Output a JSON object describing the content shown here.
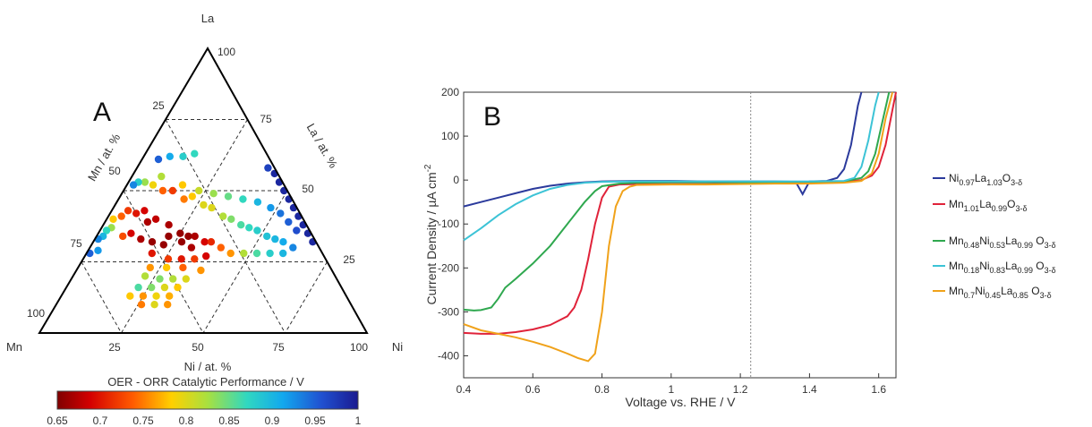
{
  "panels": {
    "a": "A",
    "b": "B"
  },
  "ternary": {
    "vertex_top": "La",
    "vertex_left": "Mn",
    "vertex_right": "Ni",
    "axis_left": "Mn / at. %",
    "axis_right": "La / at. %",
    "axis_bottom": "Ni / at. %",
    "top_label": "100",
    "left_ticks": [
      "25",
      "50",
      "75",
      "100"
    ],
    "right_ticks": [
      "75",
      "50",
      "25"
    ],
    "bottom_ticks": [
      "25",
      "50",
      "75",
      "100"
    ],
    "colorbar_title": "OER - ORR Catalytic Performance / V",
    "colorbar_ticks": [
      "0.65",
      "0.7",
      "0.75",
      "0.8",
      "0.85",
      "0.9",
      "0.95",
      "1"
    ],
    "colorbar_range": [
      0.65,
      1.0
    ]
  },
  "colors": {
    "ni_la": "#2b3a9c",
    "mn_la": "#e0233a",
    "mn_ni_la_048": "#2fa84f",
    "mn_ni_la_018": "#3cc3d6",
    "mn_ni_la_07": "#f0a21a"
  },
  "chart_data": [
    {
      "type": "scatter",
      "kind": "ternary",
      "axes": [
        "Mn / at. %",
        "Ni / at. %",
        "La / at. %"
      ],
      "color_metric": "OER - ORR Catalytic Performance / V",
      "points": [
        {
          "Mn": 45,
          "Ni": 15,
          "La": 40,
          "v": 0.68
        },
        {
          "Mn": 42,
          "Ni": 20,
          "La": 38,
          "v": 0.67
        },
        {
          "Mn": 40,
          "Ni": 25,
          "La": 35,
          "v": 0.66
        },
        {
          "Mn": 38,
          "Ni": 28,
          "La": 34,
          "v": 0.66
        },
        {
          "Mn": 36,
          "Ni": 30,
          "La": 34,
          "v": 0.67
        },
        {
          "Mn": 44,
          "Ni": 22,
          "La": 34,
          "v": 0.66
        },
        {
          "Mn": 41,
          "Ni": 27,
          "La": 32,
          "v": 0.66
        },
        {
          "Mn": 39,
          "Ni": 31,
          "La": 30,
          "v": 0.67
        },
        {
          "Mn": 34,
          "Ni": 34,
          "La": 32,
          "v": 0.69
        },
        {
          "Mn": 32,
          "Ni": 36,
          "La": 32,
          "v": 0.71
        },
        {
          "Mn": 36,
          "Ni": 37,
          "La": 27,
          "v": 0.69
        },
        {
          "Mn": 30,
          "Ni": 40,
          "La": 30,
          "v": 0.74
        },
        {
          "Mn": 50,
          "Ni": 8,
          "La": 42,
          "v": 0.7
        },
        {
          "Mn": 52,
          "Ni": 5,
          "La": 43,
          "v": 0.72
        },
        {
          "Mn": 55,
          "Ni": 4,
          "La": 41,
          "v": 0.74
        },
        {
          "Mn": 58,
          "Ni": 2,
          "La": 40,
          "v": 0.78
        },
        {
          "Mn": 60,
          "Ni": 3,
          "La": 37,
          "v": 0.83
        },
        {
          "Mn": 62,
          "Ni": 2,
          "La": 36,
          "v": 0.87
        },
        {
          "Mn": 64,
          "Ni": 2,
          "La": 34,
          "v": 0.9
        },
        {
          "Mn": 66,
          "Ni": 1,
          "La": 33,
          "v": 0.93
        },
        {
          "Mn": 47,
          "Ni": 10,
          "La": 43,
          "v": 0.69
        },
        {
          "Mn": 48,
          "Ni": 13,
          "La": 39,
          "v": 0.67
        },
        {
          "Mn": 35,
          "Ni": 15,
          "La": 50,
          "v": 0.72
        },
        {
          "Mn": 33,
          "Ni": 20,
          "La": 47,
          "v": 0.75
        },
        {
          "Mn": 30,
          "Ni": 22,
          "La": 48,
          "v": 0.78
        },
        {
          "Mn": 28,
          "Ni": 27,
          "La": 45,
          "v": 0.8
        },
        {
          "Mn": 26,
          "Ni": 30,
          "La": 44,
          "v": 0.8
        },
        {
          "Mn": 24,
          "Ni": 35,
          "La": 41,
          "v": 0.82
        },
        {
          "Mn": 22,
          "Ni": 38,
          "La": 40,
          "v": 0.84
        },
        {
          "Mn": 20,
          "Ni": 42,
          "La": 38,
          "v": 0.86
        },
        {
          "Mn": 18,
          "Ni": 45,
          "La": 37,
          "v": 0.87
        },
        {
          "Mn": 16,
          "Ni": 48,
          "La": 36,
          "v": 0.88
        },
        {
          "Mn": 14,
          "Ni": 52,
          "La": 34,
          "v": 0.89
        },
        {
          "Mn": 12,
          "Ni": 55,
          "La": 33,
          "v": 0.9
        },
        {
          "Mn": 10,
          "Ni": 58,
          "La": 32,
          "v": 0.91
        },
        {
          "Mn": 38,
          "Ni": 12,
          "La": 50,
          "v": 0.74
        },
        {
          "Mn": 40,
          "Ni": 8,
          "La": 52,
          "v": 0.79
        },
        {
          "Mn": 42,
          "Ni": 5,
          "La": 53,
          "v": 0.83
        },
        {
          "Mn": 44,
          "Ni": 3,
          "La": 53,
          "v": 0.88
        },
        {
          "Mn": 46,
          "Ni": 2,
          "La": 52,
          "v": 0.93
        },
        {
          "Mn": 31,
          "Ni": 17,
          "La": 52,
          "v": 0.78
        },
        {
          "Mn": 27,
          "Ni": 23,
          "La": 50,
          "v": 0.81
        },
        {
          "Mn": 23,
          "Ni": 28,
          "La": 49,
          "v": 0.83
        },
        {
          "Mn": 19,
          "Ni": 33,
          "La": 48,
          "v": 0.85
        },
        {
          "Mn": 15,
          "Ni": 38,
          "La": 47,
          "v": 0.87
        },
        {
          "Mn": 11,
          "Ni": 43,
          "La": 46,
          "v": 0.9
        },
        {
          "Mn": 8,
          "Ni": 48,
          "La": 44,
          "v": 0.92
        },
        {
          "Mn": 6,
          "Ni": 52,
          "La": 42,
          "v": 0.94
        },
        {
          "Mn": 5,
          "Ni": 56,
          "La": 39,
          "v": 0.95
        },
        {
          "Mn": 4,
          "Ni": 60,
          "La": 36,
          "v": 0.96
        },
        {
          "Mn": 8,
          "Ni": 62,
          "La": 30,
          "v": 0.93
        },
        {
          "Mn": 12,
          "Ni": 60,
          "La": 28,
          "v": 0.9
        },
        {
          "Mn": 16,
          "Ni": 56,
          "La": 28,
          "v": 0.88
        },
        {
          "Mn": 20,
          "Ni": 52,
          "La": 28,
          "v": 0.86
        },
        {
          "Mn": 24,
          "Ni": 48,
          "La": 28,
          "v": 0.82
        },
        {
          "Mn": 28,
          "Ni": 44,
          "La": 28,
          "v": 0.76
        },
        {
          "Mn": 1,
          "Ni": 49,
          "La": 50,
          "v": 0.99
        },
        {
          "Mn": 1,
          "Ni": 52,
          "La": 47,
          "v": 0.99
        },
        {
          "Mn": 1,
          "Ni": 55,
          "La": 44,
          "v": 0.99
        },
        {
          "Mn": 1,
          "Ni": 58,
          "La": 41,
          "v": 0.99
        },
        {
          "Mn": 1,
          "Ni": 61,
          "La": 38,
          "v": 0.99
        },
        {
          "Mn": 1,
          "Ni": 64,
          "La": 35,
          "v": 0.99
        },
        {
          "Mn": 1,
          "Ni": 67,
          "La": 32,
          "v": 0.99
        },
        {
          "Mn": 1,
          "Ni": 46,
          "La": 53,
          "v": 0.99
        },
        {
          "Mn": 1,
          "Ni": 43,
          "La": 56,
          "v": 0.99
        },
        {
          "Mn": 2,
          "Ni": 40,
          "La": 58,
          "v": 0.97
        },
        {
          "Mn": 71,
          "Ni": 1,
          "La": 28,
          "v": 0.95
        },
        {
          "Mn": 68,
          "Ni": 3,
          "La": 29,
          "v": 0.92
        },
        {
          "Mn": 58,
          "Ni": 8,
          "La": 34,
          "v": 0.73
        },
        {
          "Mn": 55,
          "Ni": 10,
          "La": 35,
          "v": 0.69
        },
        {
          "Mn": 53,
          "Ni": 14,
          "La": 33,
          "v": 0.67
        },
        {
          "Mn": 50,
          "Ni": 18,
          "La": 32,
          "v": 0.66
        },
        {
          "Mn": 47,
          "Ni": 22,
          "La": 31,
          "v": 0.66
        },
        {
          "Mn": 34,
          "Ni": 5,
          "La": 61,
          "v": 0.95
        },
        {
          "Mn": 30,
          "Ni": 8,
          "La": 62,
          "v": 0.91
        },
        {
          "Mn": 26,
          "Ni": 12,
          "La": 62,
          "v": 0.88
        },
        {
          "Mn": 22,
          "Ni": 15,
          "La": 63,
          "v": 0.87
        },
        {
          "Mn": 36,
          "Ni": 9,
          "La": 55,
          "v": 0.82
        },
        {
          "Mn": 52,
          "Ni": 20,
          "La": 28,
          "v": 0.7
        },
        {
          "Mn": 48,
          "Ni": 26,
          "La": 26,
          "v": 0.72
        },
        {
          "Mn": 44,
          "Ni": 30,
          "La": 26,
          "v": 0.7
        },
        {
          "Mn": 40,
          "Ni": 34,
          "La": 26,
          "v": 0.72
        },
        {
          "Mn": 55,
          "Ni": 22,
          "La": 23,
          "v": 0.76
        },
        {
          "Mn": 50,
          "Ni": 27,
          "La": 23,
          "v": 0.78
        },
        {
          "Mn": 45,
          "Ni": 32,
          "La": 23,
          "v": 0.74
        },
        {
          "Mn": 40,
          "Ni": 38,
          "La": 22,
          "v": 0.76
        },
        {
          "Mn": 58,
          "Ni": 22,
          "La": 20,
          "v": 0.82
        },
        {
          "Mn": 54,
          "Ni": 27,
          "La": 19,
          "v": 0.84
        },
        {
          "Mn": 50,
          "Ni": 31,
          "La": 19,
          "v": 0.82
        },
        {
          "Mn": 46,
          "Ni": 35,
          "La": 19,
          "v": 0.8
        },
        {
          "Mn": 62,
          "Ni": 22,
          "La": 16,
          "v": 0.86
        },
        {
          "Mn": 58,
          "Ni": 26,
          "La": 16,
          "v": 0.84
        },
        {
          "Mn": 54,
          "Ni": 30,
          "La": 16,
          "v": 0.8
        },
        {
          "Mn": 50,
          "Ni": 34,
          "La": 16,
          "v": 0.78
        },
        {
          "Mn": 66,
          "Ni": 21,
          "La": 13,
          "v": 0.78
        },
        {
          "Mn": 62,
          "Ni": 25,
          "La": 13,
          "v": 0.76
        },
        {
          "Mn": 58,
          "Ni": 29,
          "La": 13,
          "v": 0.79
        },
        {
          "Mn": 54,
          "Ni": 33,
          "La": 13,
          "v": 0.77
        },
        {
          "Mn": 64,
          "Ni": 26,
          "La": 10,
          "v": 0.75
        },
        {
          "Mn": 60,
          "Ni": 30,
          "La": 10,
          "v": 0.8
        },
        {
          "Mn": 56,
          "Ni": 34,
          "La": 10,
          "v": 0.76
        }
      ]
    },
    {
      "type": "line",
      "title": "",
      "xlabel": "Voltage vs. RHE / V",
      "ylabel": "Current Density / µA cm⁻²",
      "ylabel_main": "Current Density / µA cm",
      "ylabel_exp": "-2",
      "xlim": [
        0.4,
        1.65
      ],
      "ylim": [
        -450,
        200
      ],
      "x_ticks": [
        "0.4",
        "0.6",
        "0.8",
        "1",
        "1.2",
        "1.4",
        "1.6"
      ],
      "y_ticks": [
        "200",
        "100",
        "0",
        "-100",
        "-200",
        "-300",
        "-400"
      ],
      "vline_x": 1.23,
      "grid": false,
      "legend": "right",
      "series": [
        {
          "color_key": "ni_la",
          "x": [
            0.4,
            0.45,
            0.5,
            0.55,
            0.6,
            0.65,
            0.7,
            0.75,
            0.8,
            0.9,
            1.0,
            1.1,
            1.2,
            1.3,
            1.36,
            1.38,
            1.4,
            1.45,
            1.48,
            1.5,
            1.52,
            1.54,
            1.55
          ],
          "y": [
            -60,
            -50,
            -40,
            -30,
            -20,
            -13,
            -8,
            -5,
            -3,
            -2,
            -2,
            -3,
            -3,
            -3,
            -4,
            -32,
            -3,
            -2,
            5,
            25,
            80,
            170,
            200
          ]
        },
        {
          "color_key": "mn_la",
          "x": [
            0.4,
            0.45,
            0.5,
            0.55,
            0.6,
            0.65,
            0.7,
            0.72,
            0.74,
            0.76,
            0.78,
            0.8,
            0.82,
            0.85,
            0.9,
            1.0,
            1.1,
            1.2,
            1.3,
            1.4,
            1.5,
            1.55,
            1.58,
            1.6,
            1.62,
            1.64,
            1.65
          ],
          "y": [
            -348,
            -350,
            -350,
            -346,
            -340,
            -330,
            -310,
            -290,
            -250,
            -180,
            -100,
            -40,
            -15,
            -10,
            -9,
            -9,
            -9,
            -8,
            -7,
            -6,
            -4,
            0,
            10,
            30,
            80,
            160,
            200
          ]
        },
        {
          "color_key": "mn_ni_la_048",
          "x": [
            0.4,
            0.43,
            0.45,
            0.48,
            0.5,
            0.52,
            0.55,
            0.6,
            0.65,
            0.7,
            0.75,
            0.78,
            0.8,
            0.85,
            0.9,
            1.0,
            1.1,
            1.2,
            1.3,
            1.4,
            1.5,
            1.55,
            1.57,
            1.59,
            1.61,
            1.63
          ],
          "y": [
            -295,
            -297,
            -296,
            -290,
            -270,
            -245,
            -225,
            -190,
            -150,
            -100,
            -50,
            -25,
            -14,
            -8,
            -6,
            -5,
            -5,
            -5,
            -5,
            -4,
            -3,
            5,
            20,
            60,
            130,
            200
          ]
        },
        {
          "color_key": "mn_ni_la_018",
          "x": [
            0.4,
            0.45,
            0.5,
            0.55,
            0.6,
            0.65,
            0.7,
            0.75,
            0.8,
            0.9,
            1.0,
            1.1,
            1.2,
            1.3,
            1.4,
            1.5,
            1.53,
            1.55,
            1.57,
            1.59,
            1.6
          ],
          "y": [
            -137,
            -110,
            -80,
            -55,
            -35,
            -20,
            -11,
            -6,
            -4,
            -3,
            -3,
            -3,
            -3,
            -3,
            -3,
            -2,
            5,
            30,
            90,
            170,
            200
          ]
        },
        {
          "color_key": "mn_ni_la_07",
          "x": [
            0.4,
            0.45,
            0.5,
            0.55,
            0.6,
            0.65,
            0.7,
            0.73,
            0.76,
            0.78,
            0.8,
            0.82,
            0.84,
            0.86,
            0.88,
            0.9,
            1.0,
            1.1,
            1.2,
            1.3,
            1.4,
            1.5,
            1.55,
            1.58,
            1.6,
            1.62,
            1.64
          ],
          "y": [
            -328,
            -342,
            -350,
            -358,
            -368,
            -380,
            -395,
            -405,
            -412,
            -395,
            -300,
            -150,
            -60,
            -25,
            -15,
            -11,
            -10,
            -10,
            -9,
            -8,
            -8,
            -6,
            -2,
            15,
            60,
            140,
            200
          ]
        }
      ]
    }
  ],
  "legend": [
    {
      "key": "ni_la",
      "parts": [
        [
          "Ni",
          ""
        ],
        [
          "0.97",
          "sub"
        ],
        [
          "La",
          ""
        ],
        [
          "1.03",
          "sub"
        ],
        [
          "O",
          ""
        ],
        [
          "3-δ",
          "sub"
        ]
      ]
    },
    {
      "key": "mn_la",
      "parts": [
        [
          "Mn",
          ""
        ],
        [
          "1.01",
          "sub"
        ],
        [
          "La",
          ""
        ],
        [
          "0.99",
          "sub"
        ],
        [
          "O",
          ""
        ],
        [
          "3-δ",
          "sub"
        ]
      ]
    },
    {
      "key": "mn_ni_la_048",
      "parts": [
        [
          "Mn",
          ""
        ],
        [
          "0.48",
          "sub"
        ],
        [
          "Ni",
          ""
        ],
        [
          "0.53",
          "sub"
        ],
        [
          "La",
          ""
        ],
        [
          "0.99",
          "sub"
        ],
        [
          " O",
          ""
        ],
        [
          "3-δ",
          "sub"
        ]
      ]
    },
    {
      "key": "mn_ni_la_018",
      "parts": [
        [
          "Mn",
          ""
        ],
        [
          "0.18",
          "sub"
        ],
        [
          "Ni",
          ""
        ],
        [
          "0.83",
          "sub"
        ],
        [
          "La",
          ""
        ],
        [
          "0.99",
          "sub"
        ],
        [
          " O",
          ""
        ],
        [
          "3-δ",
          "sub"
        ]
      ]
    },
    {
      "key": "mn_ni_la_07",
      "parts": [
        [
          "Mn",
          ""
        ],
        [
          "0.7",
          "sub"
        ],
        [
          "Ni",
          ""
        ],
        [
          "0.45",
          "sub"
        ],
        [
          "La",
          ""
        ],
        [
          "0.85",
          "sub"
        ],
        [
          " O",
          ""
        ],
        [
          "3-δ",
          "sub"
        ]
      ]
    }
  ]
}
